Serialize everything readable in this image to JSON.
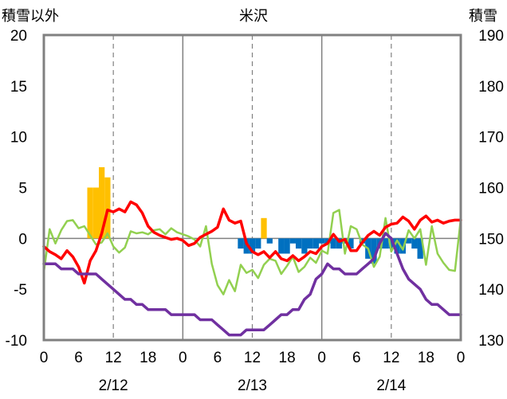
{
  "chart_data": {
    "type": "bar+line",
    "title": "米沢",
    "y_left_label": "積雪以外",
    "y_right_label": "積雪",
    "y_left": {
      "min": -10,
      "max": 20,
      "ticks": [
        20,
        15,
        10,
        5,
        0,
        -5,
        -10
      ]
    },
    "y_right": {
      "min": 130,
      "max": 190,
      "ticks": [
        190,
        180,
        170,
        160,
        150,
        140,
        130
      ]
    },
    "x": {
      "min": 0,
      "max": 72,
      "tick_hours": [
        0,
        6,
        12,
        18,
        24,
        30,
        36,
        42,
        48,
        54,
        60,
        66,
        72
      ],
      "tick_labels": [
        "0",
        "6",
        "12",
        "18",
        "0",
        "6",
        "12",
        "18",
        "0",
        "6",
        "12",
        "18",
        "0"
      ]
    },
    "day_labels": [
      {
        "hour": 12,
        "text": "2/12"
      },
      {
        "hour": 36,
        "text": "2/13"
      },
      {
        "hour": 60,
        "text": "2/14"
      }
    ],
    "day_dividers": [
      24,
      48
    ],
    "dashed_lines": [
      12,
      36,
      60
    ],
    "colors": {
      "positive_bar": "#FFC000",
      "negative_bar": "#0070C0",
      "red_line": "#FF0000",
      "green_line": "#92D050",
      "purple_line": "#7030A0",
      "frame": "#808080"
    },
    "series": [
      {
        "kind": "bar",
        "axis": "left",
        "values": [
          [
            8,
            5
          ],
          [
            9,
            5
          ],
          [
            10,
            7
          ],
          [
            11,
            6
          ],
          [
            34,
            -1
          ],
          [
            35,
            -1.5
          ],
          [
            36,
            -1.5
          ],
          [
            37,
            -1
          ],
          [
            39,
            -0.5
          ],
          [
            41,
            -1.5
          ],
          [
            42,
            -1.5
          ],
          [
            43,
            -0.5
          ],
          [
            44,
            -1
          ],
          [
            45,
            -1.5
          ],
          [
            46,
            -1
          ],
          [
            47,
            -1
          ],
          [
            48,
            -0.5
          ],
          [
            49,
            -0.5
          ],
          [
            50,
            -1
          ],
          [
            51,
            -1
          ],
          [
            52,
            -0.5
          ],
          [
            53,
            -1
          ],
          [
            55,
            -0.5
          ],
          [
            56,
            -2
          ],
          [
            57,
            -2.5
          ],
          [
            58,
            -1
          ],
          [
            59,
            -1
          ],
          [
            60,
            -1
          ],
          [
            61,
            -1.5
          ],
          [
            62,
            -1.5
          ],
          [
            63,
            -0.5
          ],
          [
            64,
            -1
          ],
          [
            65,
            -2
          ]
        ]
      },
      {
        "kind": "bar",
        "axis": "left",
        "values": [
          [
            38,
            2
          ]
        ]
      },
      {
        "kind": "line",
        "axis": "left",
        "color": "red",
        "values": [
          [
            0,
            -0.8
          ],
          [
            1,
            -1.3
          ],
          [
            2,
            -1.6
          ],
          [
            3,
            -2
          ],
          [
            4,
            -1.2
          ],
          [
            5,
            -1.8
          ],
          [
            6,
            -2.8
          ],
          [
            7,
            -4.4
          ],
          [
            8,
            -2.2
          ],
          [
            9,
            -1.2
          ],
          [
            10,
            0.5
          ],
          [
            11,
            2.8
          ],
          [
            12,
            2.6
          ],
          [
            13,
            2.9
          ],
          [
            14,
            2.6
          ],
          [
            15,
            3.6
          ],
          [
            16,
            3.3
          ],
          [
            17,
            2.5
          ],
          [
            18,
            1.2
          ],
          [
            19,
            0.6
          ],
          [
            20,
            0.3
          ],
          [
            21,
            0.1
          ],
          [
            22,
            -0.1
          ],
          [
            23,
            0
          ],
          [
            24,
            -0.2
          ],
          [
            25,
            -0.7
          ],
          [
            26,
            -0.5
          ],
          [
            27,
            0.1
          ],
          [
            28,
            0.4
          ],
          [
            29,
            0.7
          ],
          [
            30,
            1.1
          ],
          [
            31,
            2.9
          ],
          [
            32,
            1.8
          ],
          [
            33,
            1.5
          ],
          [
            34,
            1.7
          ],
          [
            35,
            -0.5
          ],
          [
            36,
            -1.3
          ],
          [
            37,
            -1.6
          ],
          [
            38,
            -1.3
          ],
          [
            39,
            -1.9
          ],
          [
            40,
            -1.3
          ],
          [
            41,
            -2
          ],
          [
            42,
            -2.2
          ],
          [
            43,
            -1.7
          ],
          [
            44,
            -2.2
          ],
          [
            45,
            -1.8
          ],
          [
            46,
            -1.3
          ],
          [
            47,
            -1.5
          ],
          [
            48,
            -0.8
          ],
          [
            49,
            -0.5
          ],
          [
            50,
            0.4
          ],
          [
            51,
            -0.3
          ],
          [
            52,
            -0.1
          ],
          [
            53,
            -1.2
          ],
          [
            54,
            -1.2
          ],
          [
            55,
            -0.4
          ],
          [
            56,
            0.3
          ],
          [
            57,
            0.7
          ],
          [
            58,
            0.3
          ],
          [
            59,
            1.1
          ],
          [
            60,
            1.4
          ],
          [
            61,
            1.5
          ],
          [
            62,
            2.1
          ],
          [
            63,
            1.7
          ],
          [
            64,
            0.9
          ],
          [
            65,
            1.8
          ],
          [
            66,
            2.2
          ],
          [
            67,
            1.6
          ],
          [
            68,
            1.8
          ],
          [
            69,
            1.5
          ],
          [
            70,
            1.7
          ],
          [
            71,
            1.8
          ],
          [
            72,
            1.8
          ]
        ]
      },
      {
        "kind": "line",
        "axis": "left",
        "color": "green",
        "values": [
          [
            0,
            -3.3
          ],
          [
            1,
            0.9
          ],
          [
            2,
            -0.5
          ],
          [
            3,
            0.8
          ],
          [
            4,
            1.7
          ],
          [
            5,
            1.8
          ],
          [
            6,
            1
          ],
          [
            7,
            1.2
          ],
          [
            8,
            0.3
          ],
          [
            9,
            -0.6
          ],
          [
            10,
            -0.4
          ],
          [
            11,
            0.5
          ],
          [
            12,
            -0.8
          ],
          [
            13,
            -1.4
          ],
          [
            14,
            -0.9
          ],
          [
            15,
            0.7
          ],
          [
            16,
            0.5
          ],
          [
            17,
            0.6
          ],
          [
            18,
            0.4
          ],
          [
            19,
            0.8
          ],
          [
            20,
            0.9
          ],
          [
            21,
            0.4
          ],
          [
            22,
            1
          ],
          [
            23,
            0.6
          ],
          [
            24,
            0.4
          ],
          [
            25,
            0.2
          ],
          [
            26,
            -0.1
          ],
          [
            27,
            -0.8
          ],
          [
            28,
            1.2
          ],
          [
            29,
            -2.5
          ],
          [
            30,
            -4.6
          ],
          [
            31,
            -5.5
          ],
          [
            32,
            -4.1
          ],
          [
            33,
            -5.2
          ],
          [
            34,
            -2.6
          ],
          [
            35,
            -3.4
          ],
          [
            36,
            -3.1
          ],
          [
            37,
            -3.9
          ],
          [
            38,
            -2.6
          ],
          [
            39,
            -2
          ],
          [
            40,
            -2.2
          ],
          [
            41,
            -3.5
          ],
          [
            42,
            -2.7
          ],
          [
            43,
            -1.8
          ],
          [
            44,
            -3.3
          ],
          [
            45,
            -2.8
          ],
          [
            46,
            -1.9
          ],
          [
            47,
            -2.4
          ],
          [
            48,
            -1.2
          ],
          [
            49,
            -1.5
          ],
          [
            50,
            2.5
          ],
          [
            51,
            2.8
          ],
          [
            52,
            -1.5
          ],
          [
            53,
            1.2
          ],
          [
            54,
            0.9
          ],
          [
            55,
            -0.6
          ],
          [
            56,
            -1
          ],
          [
            57,
            -2.8
          ],
          [
            58,
            -1.8
          ],
          [
            59,
            2
          ],
          [
            60,
            -1.3
          ],
          [
            61,
            -0.2
          ],
          [
            62,
            -1.1
          ],
          [
            63,
            0.8
          ],
          [
            64,
            0
          ],
          [
            65,
            0.9
          ],
          [
            66,
            -2.6
          ],
          [
            67,
            1.2
          ],
          [
            68,
            -1.5
          ],
          [
            69,
            -2.4
          ],
          [
            70,
            -3.1
          ],
          [
            71,
            -3.2
          ],
          [
            72,
            1.9
          ]
        ]
      },
      {
        "kind": "line",
        "axis": "right",
        "color": "purple",
        "values": [
          [
            0,
            145
          ],
          [
            1,
            145
          ],
          [
            2,
            145
          ],
          [
            3,
            144
          ],
          [
            4,
            144
          ],
          [
            5,
            144
          ],
          [
            6,
            143
          ],
          [
            7,
            143
          ],
          [
            8,
            143
          ],
          [
            9,
            143
          ],
          [
            10,
            142
          ],
          [
            11,
            141
          ],
          [
            12,
            140
          ],
          [
            13,
            139
          ],
          [
            14,
            138
          ],
          [
            15,
            138
          ],
          [
            16,
            137
          ],
          [
            17,
            137
          ],
          [
            18,
            136
          ],
          [
            19,
            136
          ],
          [
            20,
            136
          ],
          [
            21,
            136
          ],
          [
            22,
            135
          ],
          [
            23,
            135
          ],
          [
            24,
            135
          ],
          [
            25,
            135
          ],
          [
            26,
            135
          ],
          [
            27,
            134
          ],
          [
            28,
            134
          ],
          [
            29,
            134
          ],
          [
            30,
            133
          ],
          [
            31,
            132
          ],
          [
            32,
            131
          ],
          [
            33,
            131
          ],
          [
            34,
            131
          ],
          [
            35,
            132
          ],
          [
            36,
            132
          ],
          [
            37,
            132
          ],
          [
            38,
            132
          ],
          [
            39,
            133
          ],
          [
            40,
            134
          ],
          [
            41,
            135
          ],
          [
            42,
            135
          ],
          [
            43,
            136
          ],
          [
            44,
            136
          ],
          [
            45,
            138
          ],
          [
            46,
            139
          ],
          [
            47,
            142
          ],
          [
            48,
            143
          ],
          [
            49,
            145
          ],
          [
            50,
            144
          ],
          [
            51,
            144
          ],
          [
            52,
            143
          ],
          [
            53,
            143
          ],
          [
            54,
            143
          ],
          [
            55,
            144
          ],
          [
            56,
            145
          ],
          [
            57,
            146
          ],
          [
            58,
            149
          ],
          [
            59,
            151
          ],
          [
            60,
            150
          ],
          [
            61,
            147
          ],
          [
            62,
            144
          ],
          [
            63,
            142
          ],
          [
            64,
            141
          ],
          [
            65,
            140
          ],
          [
            66,
            138
          ],
          [
            67,
            137
          ],
          [
            68,
            137
          ],
          [
            69,
            136
          ],
          [
            70,
            135
          ],
          [
            71,
            135
          ],
          [
            72,
            135
          ]
        ]
      }
    ]
  }
}
